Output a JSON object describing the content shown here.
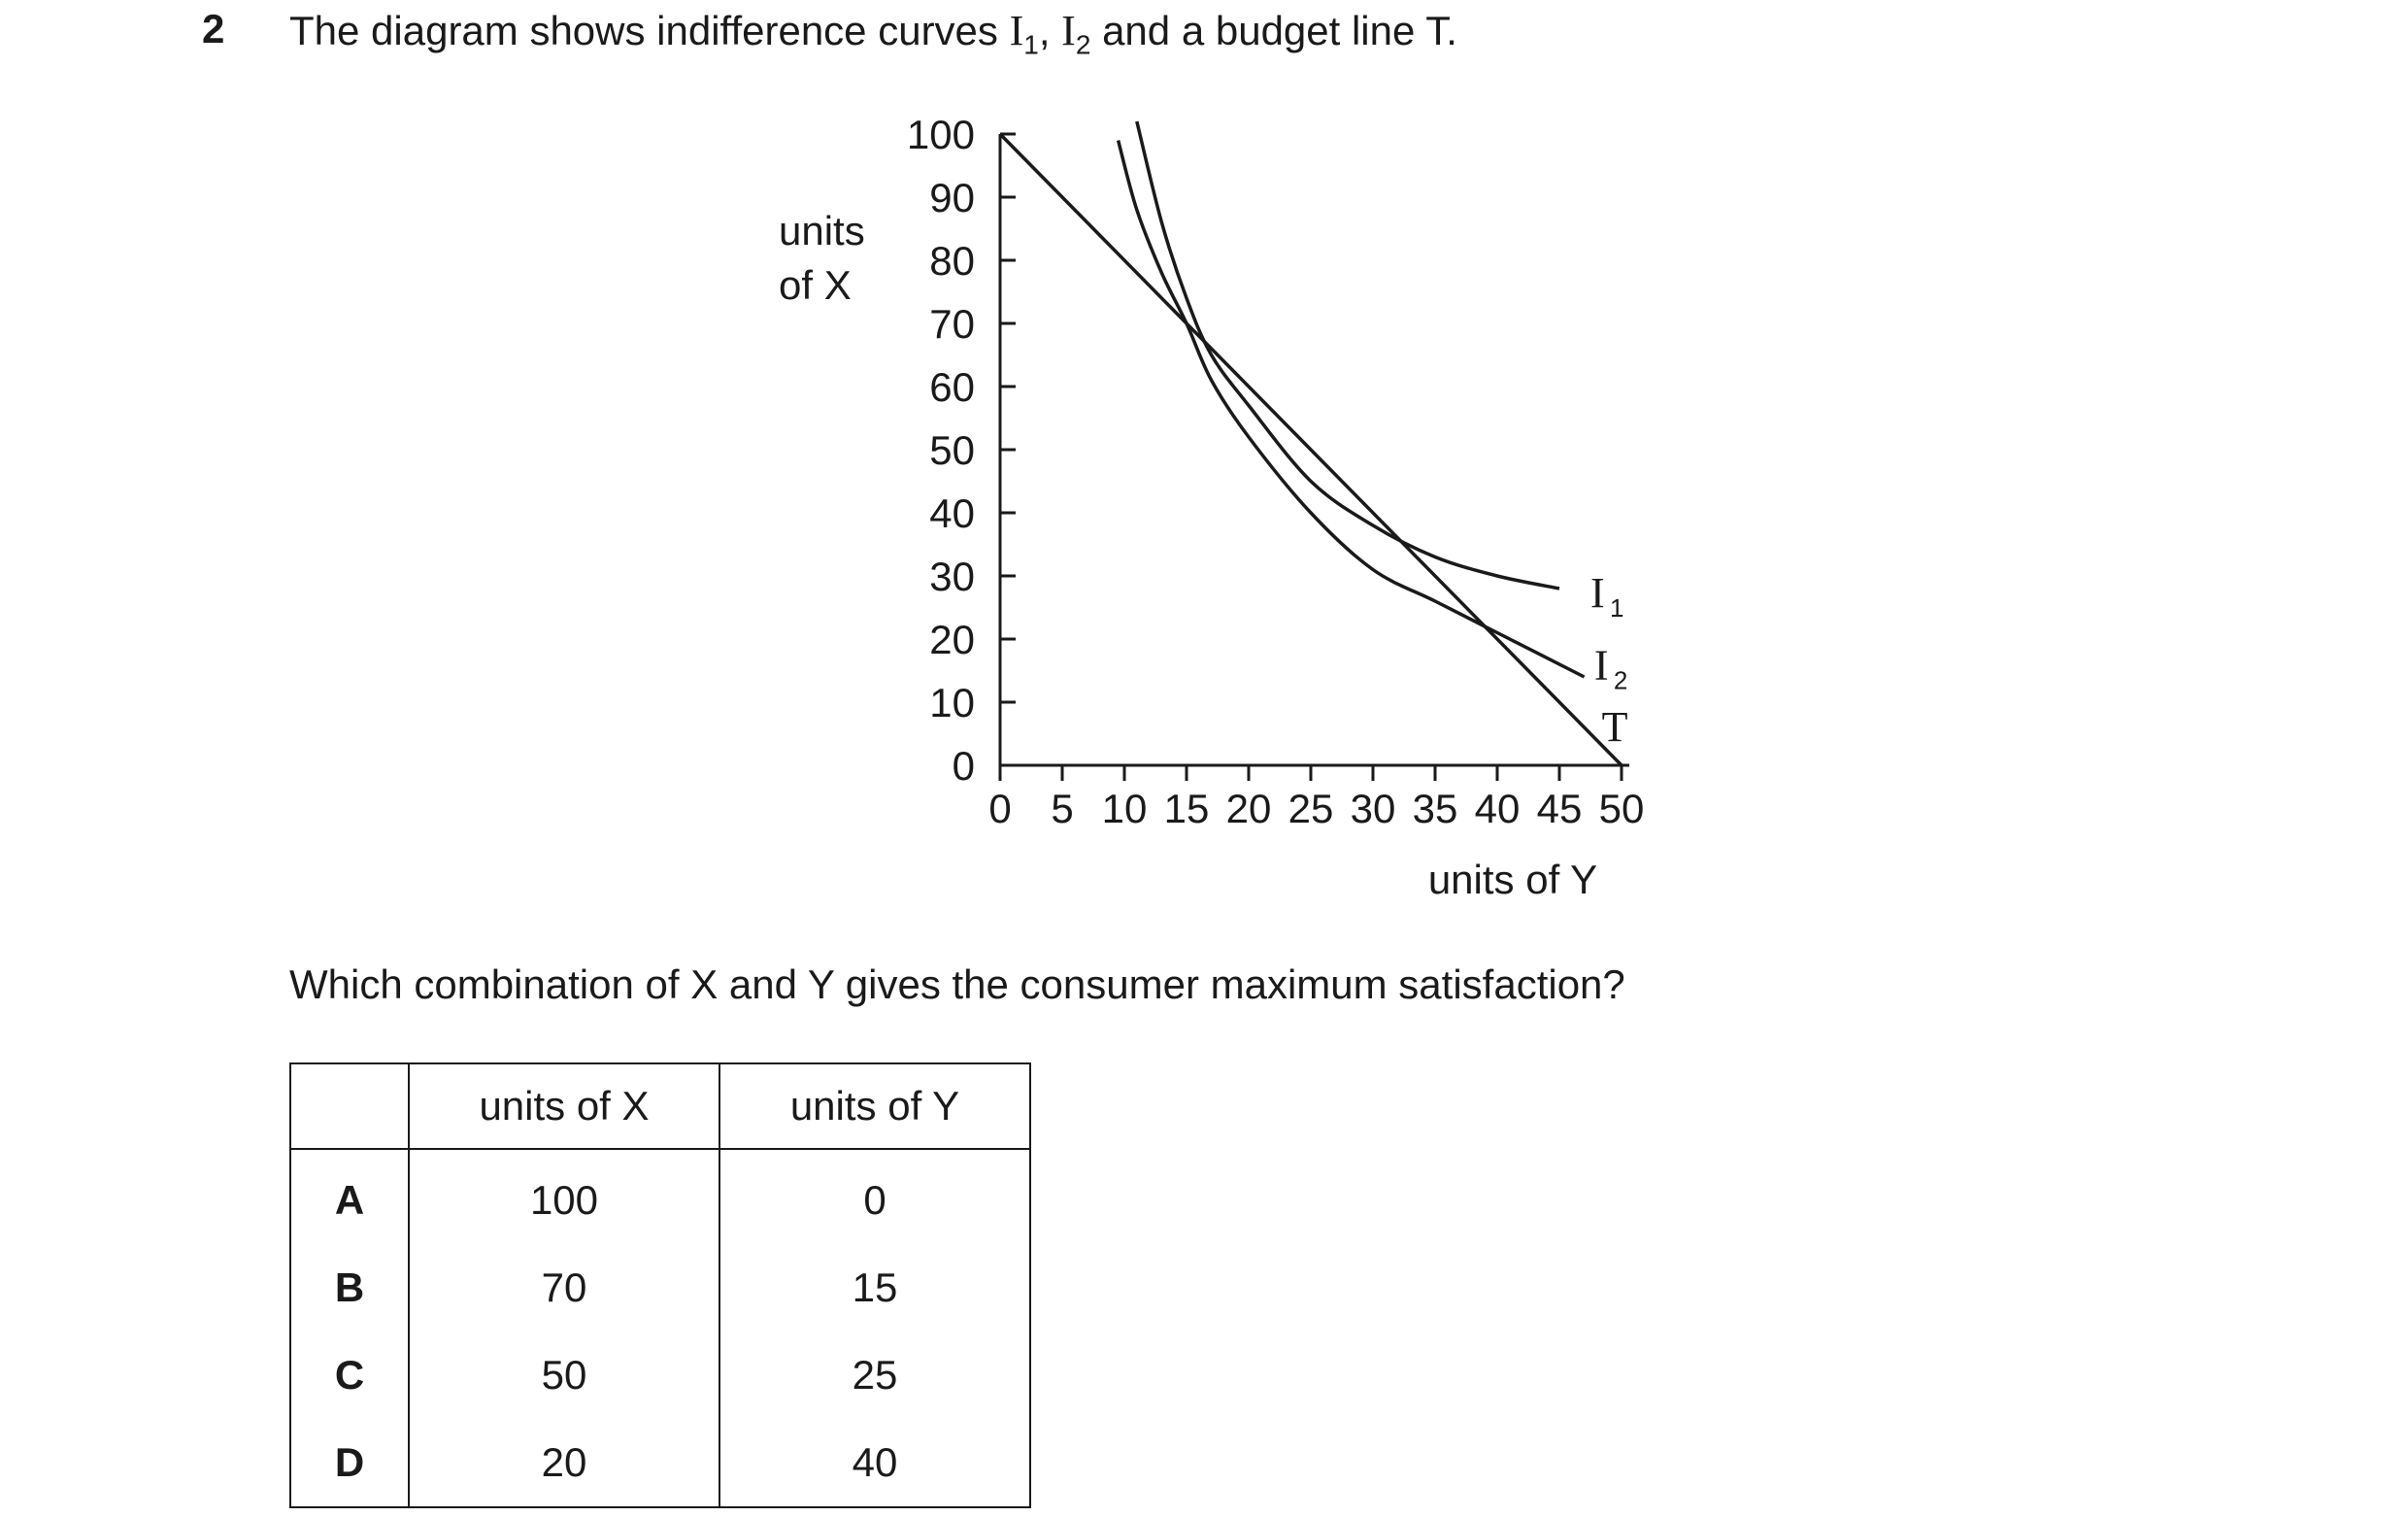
{
  "question": {
    "number": "2",
    "stem_prefix": "The diagram shows indifference curves ",
    "i_symbol": "I",
    "sub1": "1",
    "sep": ", ",
    "sub2": "2",
    "stem_suffix": " and a budget line T.",
    "prompt": "Which combination of X and Y gives the consumer maximum satisfaction?"
  },
  "chart_data": {
    "type": "line",
    "ylabel_line1": "units",
    "ylabel_line2": "of X",
    "xlabel": "units of Y",
    "xlim": [
      0,
      50
    ],
    "ylim": [
      0,
      100
    ],
    "x_ticks": [
      "0",
      "5",
      "10",
      "15",
      "20",
      "25",
      "30",
      "35",
      "40",
      "45",
      "50"
    ],
    "y_ticks": [
      "0",
      "10",
      "20",
      "30",
      "40",
      "50",
      "60",
      "70",
      "80",
      "90",
      "100"
    ],
    "grid": false,
    "series": [
      {
        "name": "T",
        "x": [
          0,
          50
        ],
        "y": [
          100,
          0
        ]
      },
      {
        "name": "I1",
        "label_sub": "1",
        "x": [
          11,
          13,
          15,
          17,
          20,
          25,
          30,
          35,
          40,
          45
        ],
        "y": [
          102,
          86,
          74,
          65,
          57,
          45,
          38,
          33,
          30,
          28
        ]
      },
      {
        "name": "I2",
        "label_sub": "2",
        "x": [
          9.5,
          11,
          13,
          15,
          17,
          20,
          25,
          30,
          35,
          40,
          47
        ],
        "y": [
          99,
          88,
          78,
          70,
          61,
          52,
          40,
          31,
          26,
          21,
          14
        ]
      }
    ],
    "series_labels": {
      "I1": "I",
      "I2": "I",
      "T": "T"
    }
  },
  "table": {
    "headers": [
      "",
      "units of X",
      "units of Y"
    ],
    "rows": [
      {
        "letter": "A",
        "x": "100",
        "y": "0"
      },
      {
        "letter": "B",
        "x": "70",
        "y": "15"
      },
      {
        "letter": "C",
        "x": "50",
        "y": "25"
      },
      {
        "letter": "D",
        "x": "20",
        "y": "40"
      }
    ]
  }
}
